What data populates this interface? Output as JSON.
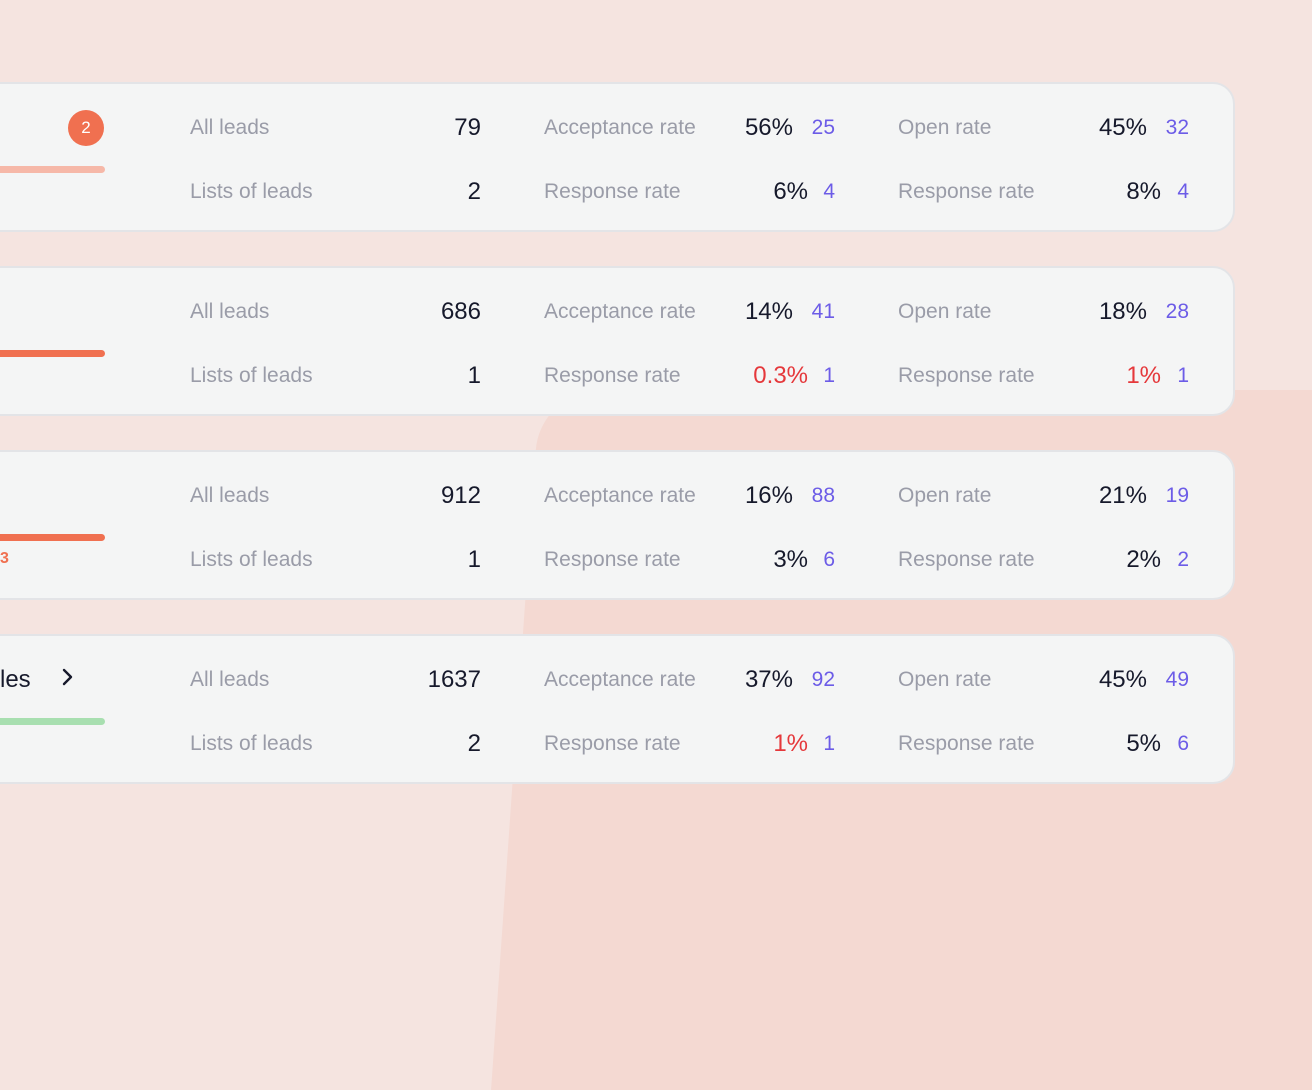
{
  "colors": {
    "accent": "#6c5ce7",
    "danger": "#e5383b",
    "badge": "#f07050",
    "progress_light": "#f6b8a8",
    "progress_orange": "#f07050",
    "progress_green": "#a8dfb0"
  },
  "rows": [
    {
      "badge": "2",
      "progress": {
        "color": "#f6b8a8"
      },
      "all_leads": {
        "label": "All leads",
        "value": "79"
      },
      "lists_of_leads": {
        "label": "Lists of leads",
        "value": "2"
      },
      "acceptance": {
        "label": "Acceptance rate",
        "rate": "56%",
        "count": "25"
      },
      "response_li": {
        "label": "Response rate",
        "rate": "6%",
        "count": "4"
      },
      "open": {
        "label": "Open rate",
        "rate": "45%",
        "count": "32"
      },
      "response_email": {
        "label": "Response rate",
        "rate": "8%",
        "count": "4"
      }
    },
    {
      "progress": {
        "color": "#f07050"
      },
      "all_leads": {
        "label": "All leads",
        "value": "686"
      },
      "lists_of_leads": {
        "label": "Lists of leads",
        "value": "1"
      },
      "acceptance": {
        "label": "Acceptance rate",
        "rate": "14%",
        "count": "41"
      },
      "response_li": {
        "label": "Response rate",
        "rate": "0.3%",
        "count": "1"
      },
      "open": {
        "label": "Open rate",
        "rate": "18%",
        "count": "28"
      },
      "response_email": {
        "label": "Response rate",
        "rate": "1%",
        "count": "1"
      }
    },
    {
      "progress": {
        "color": "#f07050"
      },
      "fragment": "3",
      "all_leads": {
        "label": "All leads",
        "value": "912"
      },
      "lists_of_leads": {
        "label": "Lists of leads",
        "value": "1"
      },
      "acceptance": {
        "label": "Acceptance rate",
        "rate": "16%",
        "count": "88"
      },
      "response_li": {
        "label": "Response rate",
        "rate": "3%",
        "count": "6"
      },
      "open": {
        "label": "Open rate",
        "rate": "21%",
        "count": "19"
      },
      "response_email": {
        "label": "Response rate",
        "rate": "2%",
        "count": "2"
      }
    },
    {
      "progress": {
        "color": "#a8dfb0"
      },
      "title_fragment": "les",
      "chevron_icon": "chevron-right-icon",
      "all_leads": {
        "label": "All leads",
        "value": "1637"
      },
      "lists_of_leads": {
        "label": "Lists of leads",
        "value": "2"
      },
      "acceptance": {
        "label": "Acceptance rate",
        "rate": "37%",
        "count": "92"
      },
      "response_li": {
        "label": "Response rate",
        "rate": "1%",
        "count": "1"
      },
      "open": {
        "label": "Open rate",
        "rate": "45%",
        "count": "49"
      },
      "response_email": {
        "label": "Response rate",
        "rate": "5%",
        "count": "6"
      }
    }
  ]
}
